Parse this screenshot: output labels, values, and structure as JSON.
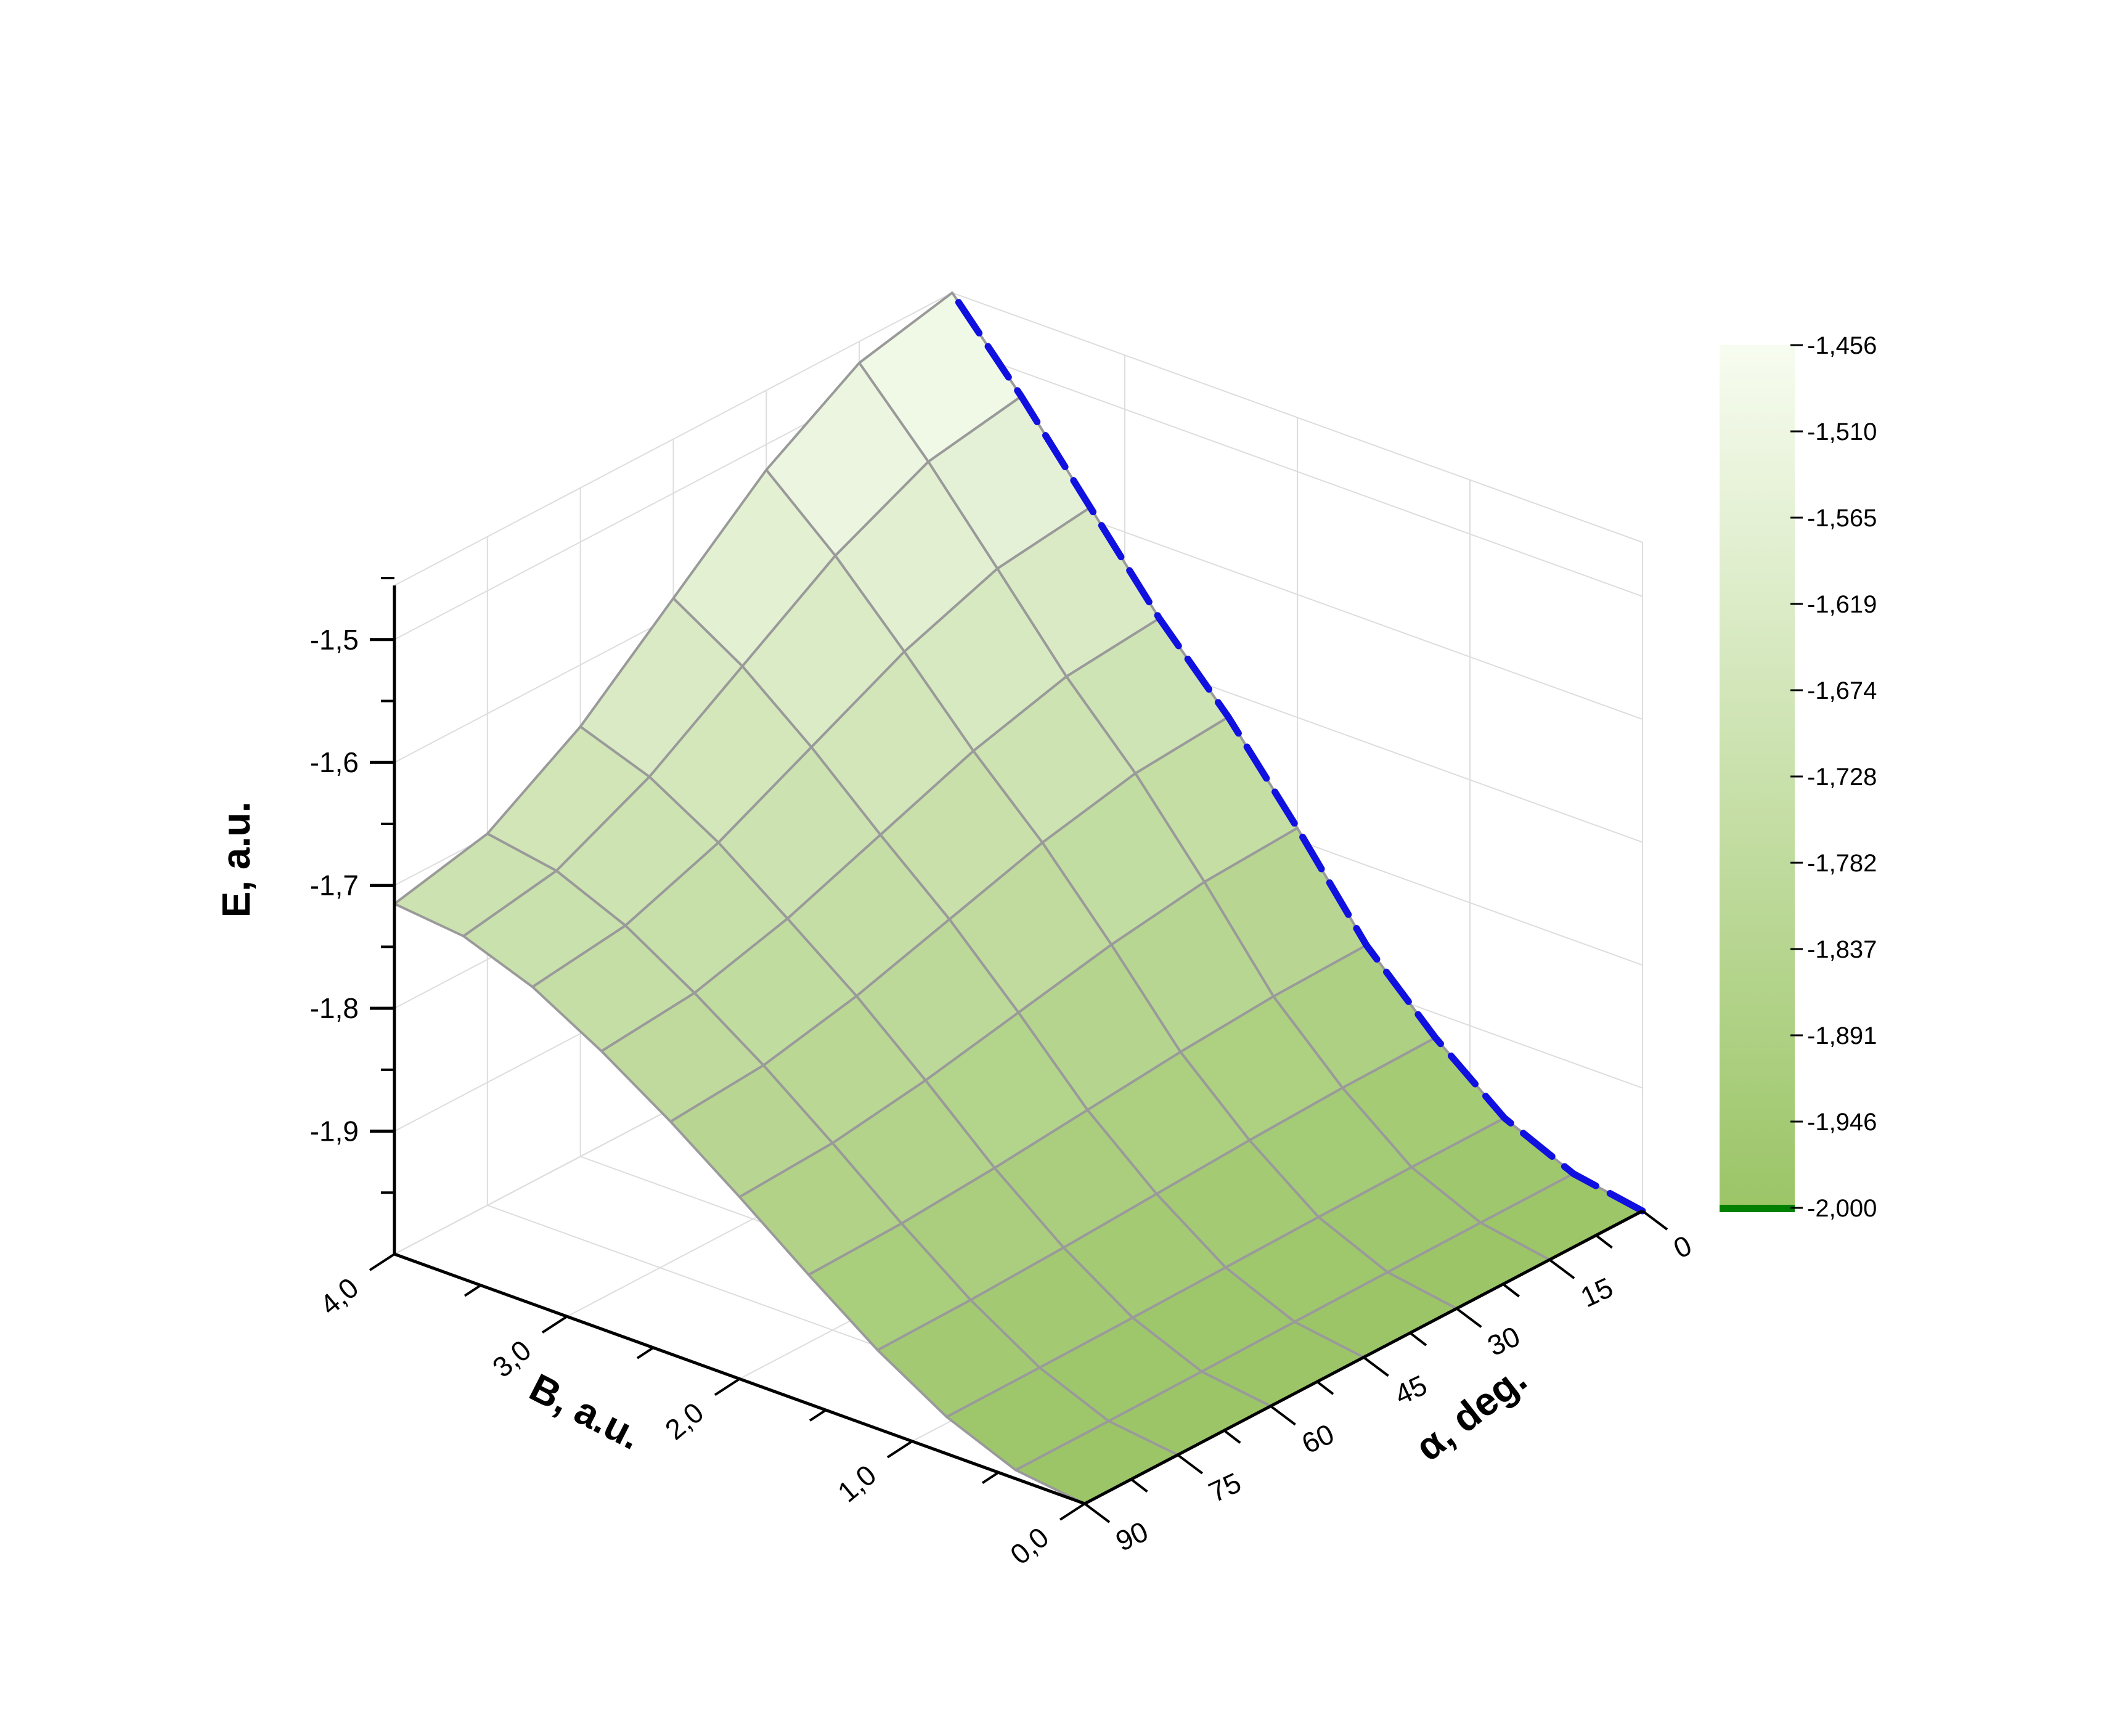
{
  "chart_data": {
    "type": "surface3d",
    "x_axis": {
      "title": "B, a.u.",
      "range": [
        0.0,
        4.0
      ],
      "tick_labels": [
        "0,0",
        "1,0",
        "2,0",
        "3,0",
        "4,0"
      ],
      "tick_values": [
        0,
        1,
        2,
        3,
        4
      ]
    },
    "y_axis": {
      "title": "α, deg.",
      "range": [
        0,
        90
      ],
      "tick_labels": [
        "0",
        "15",
        "30",
        "45",
        "60",
        "75",
        "90"
      ],
      "tick_values": [
        0,
        15,
        30,
        45,
        60,
        75,
        90
      ]
    },
    "z_axis": {
      "title": "E, a.u.",
      "range": [
        -2.0,
        -1.456
      ],
      "tick_labels": [
        "-1,9",
        "-1,8",
        "-1,7",
        "-1,6",
        "-1,5"
      ],
      "tick_values": [
        -1.9,
        -1.8,
        -1.7,
        -1.6,
        -1.5
      ]
    },
    "grid": true,
    "surface": {
      "B": [
        0.0,
        0.4,
        0.8,
        1.2,
        1.6,
        2.0,
        2.4,
        2.8,
        3.2,
        3.6,
        4.0
      ],
      "alpha": [
        0,
        15,
        30,
        45,
        60,
        75,
        90
      ],
      "E_at_alpha_0": [
        -2.0,
        -1.99,
        -1.965,
        -1.92,
        -1.865,
        -1.79,
        -1.72,
        -1.66,
        -1.59,
        -1.52,
        -1.456
      ],
      "E_at_alpha_90": [
        -2.0,
        -1.993,
        -1.97,
        -1.936,
        -1.895,
        -1.852,
        -1.811,
        -1.774,
        -1.742,
        -1.721,
        -1.715
      ]
    },
    "dashed_curve": {
      "color": "#1010e0",
      "B": [
        0.0,
        0.4,
        0.8,
        1.2,
        1.6,
        2.0,
        2.4,
        2.8,
        3.2,
        3.6,
        4.0
      ],
      "E": [
        -2.0,
        -1.99,
        -1.965,
        -1.92,
        -1.865,
        -1.79,
        -1.72,
        -1.66,
        -1.59,
        -1.52,
        -1.456
      ]
    },
    "colorbar": {
      "labels": [
        "-1,456",
        "-1,510",
        "-1,565",
        "-1,619",
        "-1,674",
        "-1,728",
        "-1,782",
        "-1,837",
        "-1,891",
        "-1,946",
        "-2,000"
      ],
      "color_high": "#f7fcf0",
      "color_low": "#9bc567",
      "floor_line_color": "#008000",
      "placement": "right"
    },
    "mesh_color": "#9a9a9a"
  }
}
